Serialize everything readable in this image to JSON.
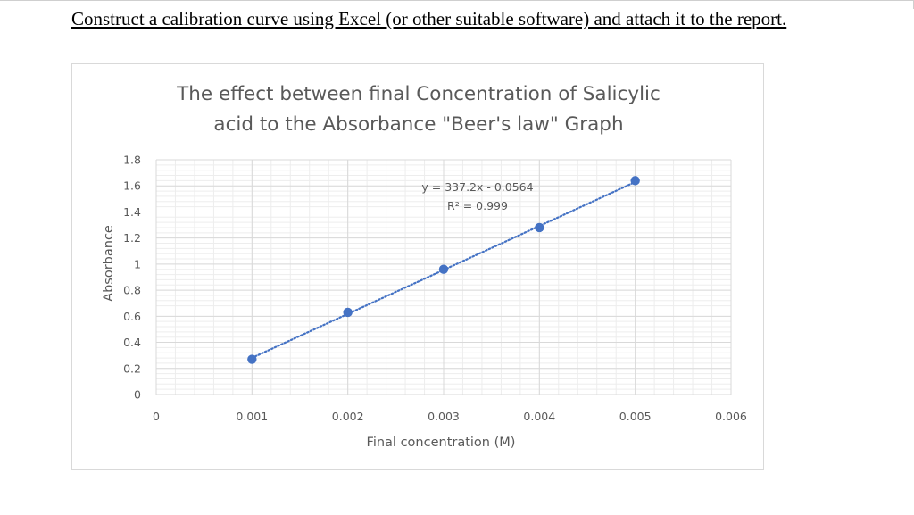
{
  "document": {
    "instruction": "Construct a calibration curve using Excel (or other suitable software) and attach it to the report."
  },
  "chart_data": {
    "type": "scatter",
    "title_lines": [
      "The effect between final Concentration of Salicylic",
      "acid to the Absorbance \"Beer's law\" Graph"
    ],
    "xlabel": "Final concentration (M)",
    "ylabel": "Absorbance",
    "xlim": [
      0,
      0.006
    ],
    "ylim": [
      0,
      1.8
    ],
    "x_ticks": [
      "0",
      "0.001",
      "0.002",
      "0.003",
      "0.004",
      "0.005",
      "0.006"
    ],
    "y_ticks": [
      "0",
      "0.2",
      "0.4",
      "0.6",
      "0.8",
      "1",
      "1.2",
      "1.4",
      "1.6",
      "1.8"
    ],
    "series": [
      {
        "x": [
          0.001,
          0.002,
          0.003,
          0.004,
          0.005
        ],
        "y": [
          0.27,
          0.63,
          0.96,
          1.28,
          1.64
        ]
      }
    ],
    "trendline": {
      "style": "dotted",
      "slope": 337.2,
      "intercept": -0.0564,
      "equation": "y = 337.2x - 0.0564",
      "r_squared": "R² = 0.999"
    },
    "grid": "major and minor",
    "legend": "none",
    "colors": {
      "marker": "#4472c4",
      "trendline": "#4472c4",
      "grid": "#d9d9d9",
      "text": "#595959"
    }
  }
}
